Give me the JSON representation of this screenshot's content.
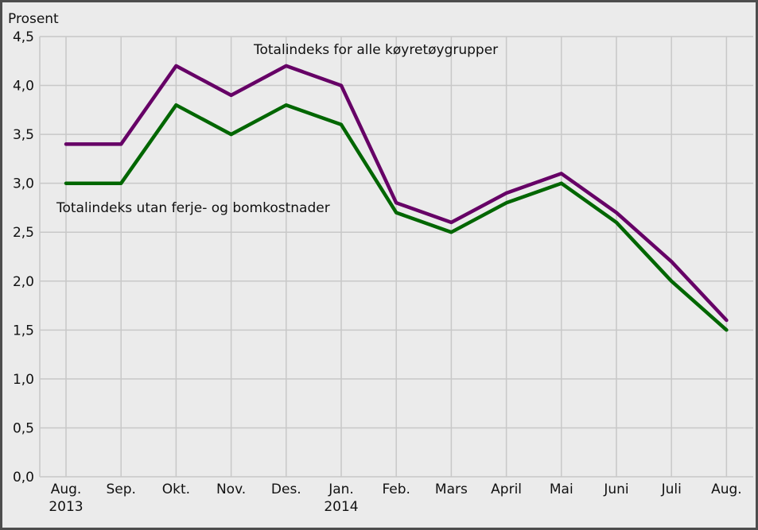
{
  "chart_data": {
    "type": "line",
    "ylabel": "Prosent",
    "ylim": [
      0,
      4.5
    ],
    "y_ticks": [
      "0,0",
      "0,5",
      "1,0",
      "1,5",
      "2,0",
      "2,5",
      "3,0",
      "3,5",
      "4,0",
      "4,5"
    ],
    "y_tick_values": [
      0,
      0.5,
      1.0,
      1.5,
      2.0,
      2.5,
      3.0,
      3.5,
      4.0,
      4.5
    ],
    "categories": [
      "Aug.",
      "Sep.",
      "Okt.",
      "Nov.",
      "Des.",
      "Jan.",
      "Feb.",
      "Mars",
      "April",
      "Mai",
      "Juni",
      "Juli",
      "Aug."
    ],
    "category_sublabels": [
      "2013",
      "",
      "",
      "",
      "",
      "2014",
      "",
      "",
      "",
      "",
      "",
      "",
      ""
    ],
    "grid": true,
    "series": [
      {
        "name": "Totalindeks for alle køyretøygrupper",
        "color": "#660066",
        "values": [
          3.4,
          3.4,
          4.2,
          3.9,
          4.2,
          4.0,
          2.8,
          2.6,
          2.9,
          3.1,
          2.7,
          2.2,
          1.6
        ]
      },
      {
        "name": "Totalindeks utan ferje- og bomkostnader",
        "color": "#006600",
        "values": [
          3.0,
          3.0,
          3.8,
          3.5,
          3.8,
          3.6,
          2.7,
          2.5,
          2.8,
          3.0,
          2.6,
          2.0,
          1.5
        ]
      }
    ],
    "colors": {
      "background": "#ebebeb",
      "grid": "#c8c8c8",
      "frame": "#4d4d4d"
    }
  }
}
